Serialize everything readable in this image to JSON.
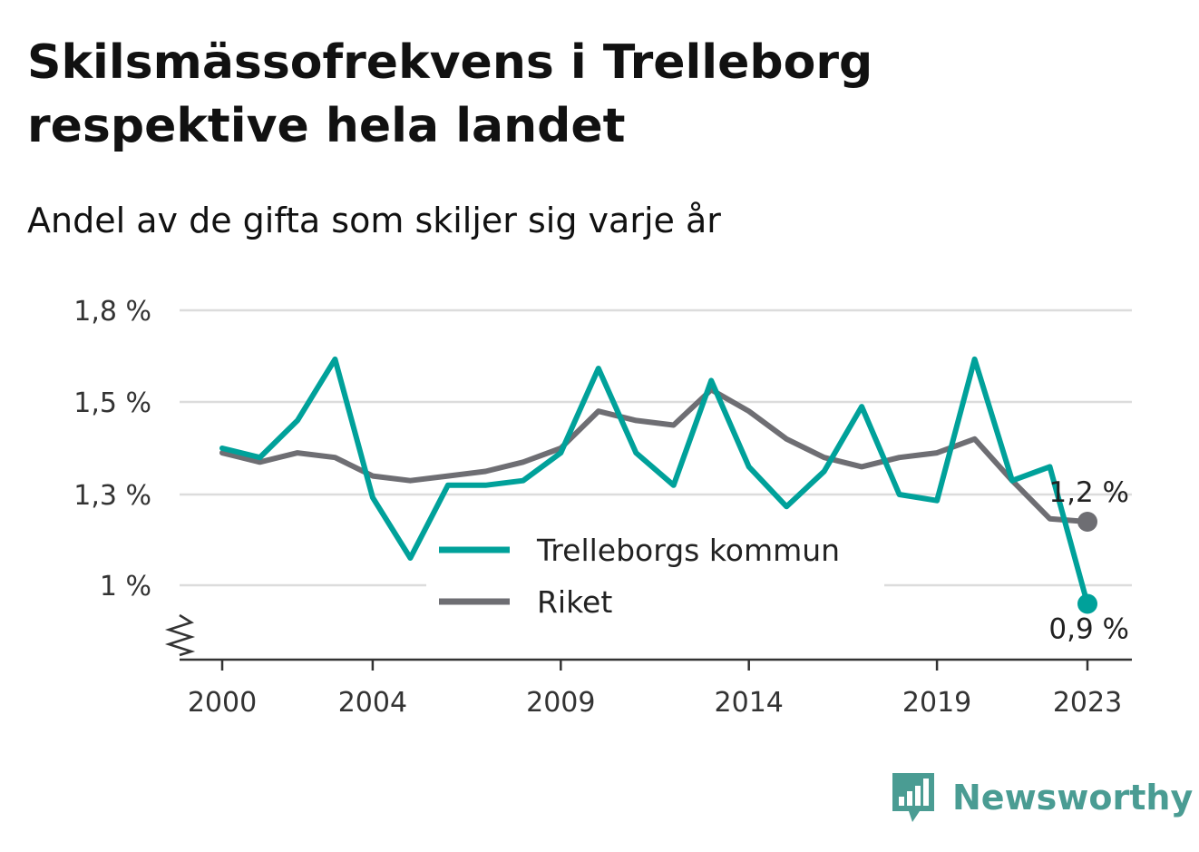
{
  "header": {
    "title": "Skilsmässofrekvens i Trelleborg respektive hela landet",
    "subtitle": "Andel av de gifta som skiljer sig varje år"
  },
  "brand": {
    "name": "Newsworthy",
    "icon": "newsworthy-logo-icon",
    "color": "#4a9c93"
  },
  "chart_data": {
    "type": "line",
    "y_ticks": [
      {
        "value": 1.0,
        "label": "1 %"
      },
      {
        "value": 1.3,
        "label": "1,3 %"
      },
      {
        "value": 1.5,
        "label": "1,5 %"
      },
      {
        "value": 1.8,
        "label": "1,8 %"
      }
    ],
    "x_ticks": [
      2000,
      2004,
      2009,
      2014,
      2019,
      2023
    ],
    "ylim": [
      0.8,
      1.8
    ],
    "xlim": [
      1999.2,
      2024.2
    ],
    "axis_break": true,
    "grid": true,
    "legend_placement": "bottom-center",
    "series": [
      {
        "name": "Trelleborgs kommun",
        "color": "#00a19a",
        "x": [
          2000,
          2001,
          2002,
          2003,
          2004,
          2005,
          2006,
          2007,
          2008,
          2009,
          2010,
          2011,
          2012,
          2013,
          2014,
          2015,
          2016,
          2017,
          2018,
          2019,
          2020,
          2021,
          2022,
          2023
        ],
        "values": [
          1.4,
          1.38,
          1.46,
          1.64,
          1.29,
          1.09,
          1.32,
          1.32,
          1.33,
          1.39,
          1.61,
          1.39,
          1.32,
          1.57,
          1.36,
          1.26,
          1.35,
          1.49,
          1.3,
          1.28,
          1.64,
          1.33,
          1.36,
          0.95
        ],
        "end_label": "0,9 %"
      },
      {
        "name": "Riket",
        "color": "#6e6e73",
        "x": [
          2000,
          2001,
          2002,
          2003,
          2004,
          2005,
          2006,
          2007,
          2008,
          2009,
          2010,
          2011,
          2012,
          2013,
          2014,
          2015,
          2016,
          2017,
          2018,
          2019,
          2020,
          2021,
          2022,
          2023
        ],
        "values": [
          1.39,
          1.37,
          1.39,
          1.38,
          1.34,
          1.33,
          1.34,
          1.35,
          1.37,
          1.4,
          1.48,
          1.46,
          1.45,
          1.54,
          1.48,
          1.42,
          1.38,
          1.36,
          1.38,
          1.39,
          1.42,
          1.33,
          1.22,
          1.21
        ],
        "end_label": "1,2 %"
      }
    ]
  }
}
